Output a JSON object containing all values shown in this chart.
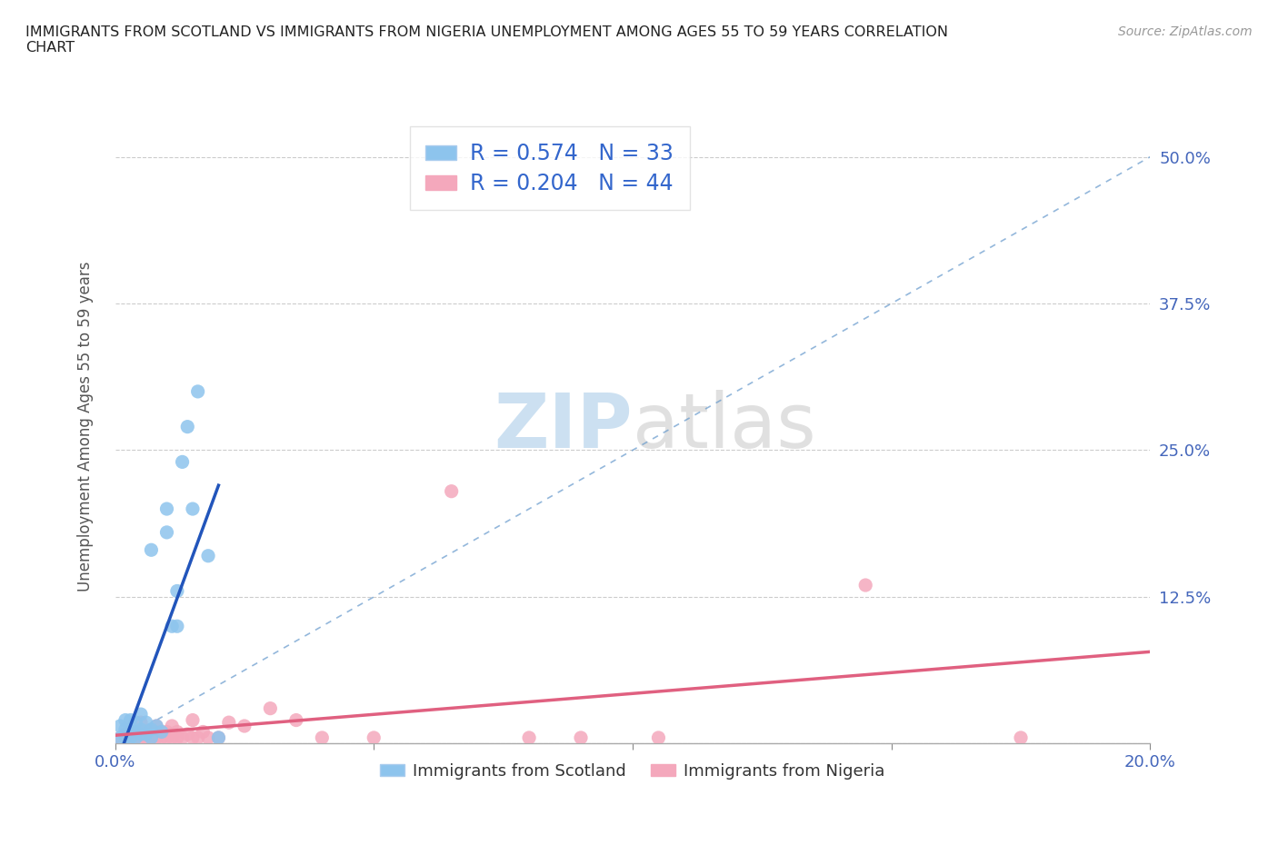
{
  "title": "IMMIGRANTS FROM SCOTLAND VS IMMIGRANTS FROM NIGERIA UNEMPLOYMENT AMONG AGES 55 TO 59 YEARS CORRELATION\nCHART",
  "source": "Source: ZipAtlas.com",
  "ylabel_label": "Unemployment Among Ages 55 to 59 years",
  "xlim": [
    0.0,
    0.2
  ],
  "ylim": [
    0.0,
    0.54
  ],
  "xticks": [
    0.0,
    0.05,
    0.1,
    0.15,
    0.2
  ],
  "xticklabels": [
    "0.0%",
    "",
    "",
    "",
    "20.0%"
  ],
  "yticks": [
    0.0,
    0.125,
    0.25,
    0.375,
    0.5
  ],
  "yticklabels": [
    "",
    "12.5%",
    "25.0%",
    "37.5%",
    "50.0%"
  ],
  "scotland_color": "#8DC4ED",
  "nigeria_color": "#F4A8BC",
  "scotland_line_color": "#2255BB",
  "nigeria_line_color": "#E06080",
  "dash_color": "#7BAAD4",
  "scotland_R": 0.574,
  "scotland_N": 33,
  "nigeria_R": 0.204,
  "nigeria_N": 44,
  "watermark_zip": "ZIP",
  "watermark_atlas": "atlas",
  "legend_label_scotland": "Immigrants from Scotland",
  "legend_label_nigeria": "Immigrants from Nigeria",
  "scotland_x": [
    0.001,
    0.001,
    0.002,
    0.002,
    0.002,
    0.002,
    0.003,
    0.003,
    0.003,
    0.004,
    0.004,
    0.004,
    0.005,
    0.005,
    0.005,
    0.006,
    0.006,
    0.007,
    0.007,
    0.007,
    0.008,
    0.009,
    0.01,
    0.01,
    0.011,
    0.012,
    0.012,
    0.013,
    0.014,
    0.015,
    0.016,
    0.018,
    0.02
  ],
  "scotland_y": [
    0.005,
    0.015,
    0.005,
    0.008,
    0.012,
    0.02,
    0.005,
    0.01,
    0.02,
    0.005,
    0.01,
    0.018,
    0.008,
    0.012,
    0.025,
    0.008,
    0.018,
    0.005,
    0.012,
    0.165,
    0.015,
    0.01,
    0.18,
    0.2,
    0.1,
    0.1,
    0.13,
    0.24,
    0.27,
    0.2,
    0.3,
    0.16,
    0.005
  ],
  "nigeria_x": [
    0.001,
    0.002,
    0.003,
    0.003,
    0.004,
    0.004,
    0.005,
    0.005,
    0.005,
    0.006,
    0.006,
    0.007,
    0.007,
    0.008,
    0.008,
    0.008,
    0.009,
    0.009,
    0.01,
    0.01,
    0.011,
    0.011,
    0.012,
    0.012,
    0.013,
    0.014,
    0.015,
    0.015,
    0.016,
    0.017,
    0.018,
    0.02,
    0.022,
    0.025,
    0.03,
    0.035,
    0.04,
    0.05,
    0.065,
    0.08,
    0.09,
    0.105,
    0.145,
    0.175
  ],
  "nigeria_y": [
    0.005,
    0.008,
    0.005,
    0.01,
    0.005,
    0.008,
    0.005,
    0.01,
    0.018,
    0.005,
    0.01,
    0.005,
    0.01,
    0.005,
    0.008,
    0.015,
    0.005,
    0.01,
    0.005,
    0.01,
    0.005,
    0.015,
    0.005,
    0.01,
    0.005,
    0.008,
    0.005,
    0.02,
    0.005,
    0.01,
    0.005,
    0.005,
    0.018,
    0.015,
    0.03,
    0.02,
    0.005,
    0.005,
    0.215,
    0.005,
    0.005,
    0.005,
    0.135,
    0.005
  ]
}
